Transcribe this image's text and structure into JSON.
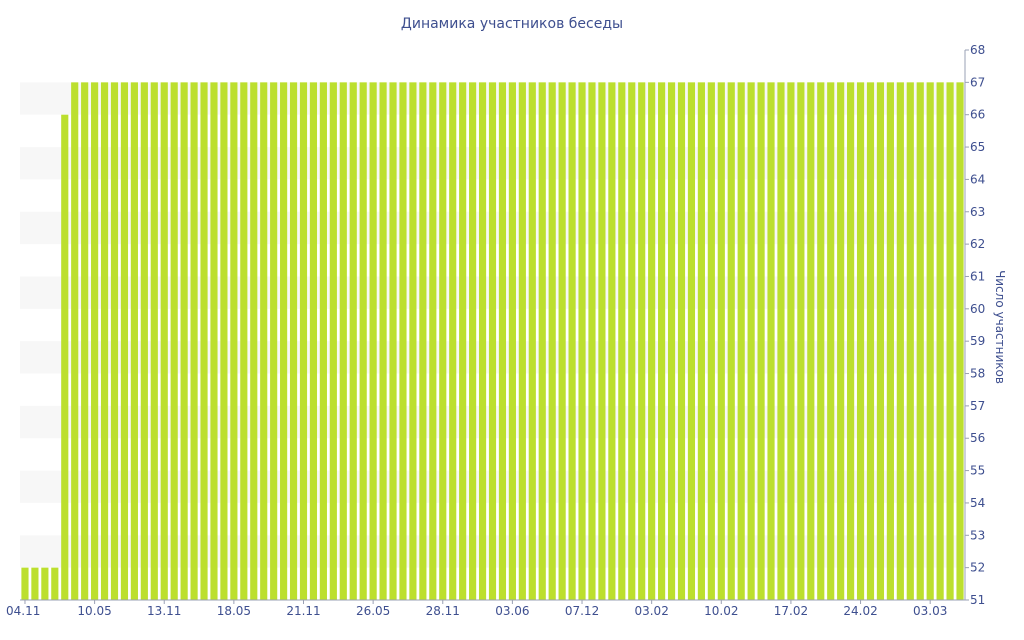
{
  "chart_data": {
    "type": "bar",
    "title": "Динамика участников беседы",
    "ylabel": "Число участников",
    "xlabel": "",
    "ylim": [
      51,
      68
    ],
    "y_ticks": [
      "51",
      "52",
      "53",
      "54",
      "55",
      "56",
      "57",
      "58",
      "59",
      "60",
      "61",
      "62",
      "63",
      "64",
      "65",
      "66",
      "67",
      "68"
    ],
    "x_ticks": [
      "04.11",
      "10.05",
      "13.11",
      "18.05",
      "21.11",
      "26.05",
      "28.11",
      "03.06",
      "07.12",
      "03.02",
      "10.02",
      "17.02",
      "24.02",
      "03.03"
    ],
    "x_tick_positions": [
      0,
      7,
      14,
      21,
      28,
      35,
      42,
      49,
      56,
      63,
      70,
      77,
      84,
      91
    ],
    "grid": false,
    "values": [
      52,
      52,
      52,
      52,
      66,
      67,
      67,
      67,
      67,
      67,
      67,
      67,
      67,
      67,
      67,
      67,
      67,
      67,
      67,
      67,
      67,
      67,
      67,
      67,
      67,
      67,
      67,
      67,
      67,
      67,
      67,
      67,
      67,
      67,
      67,
      67,
      67,
      67,
      67,
      67,
      67,
      67,
      67,
      67,
      67,
      67,
      67,
      67,
      67,
      67,
      67,
      67,
      67,
      67,
      67,
      67,
      67,
      67,
      67,
      67,
      67,
      67,
      67,
      67,
      67,
      67,
      67,
      67,
      67,
      67,
      67,
      67,
      67,
      67,
      67,
      67,
      67,
      67,
      67,
      67,
      67,
      67,
      67,
      67,
      67,
      67,
      67,
      67,
      67,
      67,
      67,
      67,
      67,
      67,
      67
    ]
  },
  "colors": {
    "bar": "#bcdf2e",
    "text": "#3e4f8f",
    "band": "#f7f7f7"
  }
}
